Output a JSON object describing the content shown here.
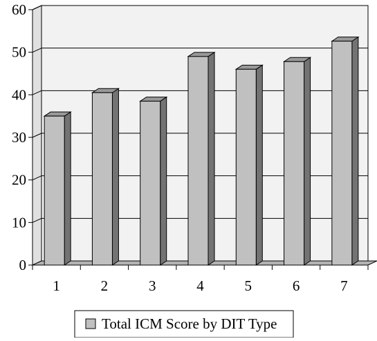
{
  "chart_data": {
    "type": "bar",
    "style": "3d-column",
    "categories": [
      "1",
      "2",
      "3",
      "4",
      "5",
      "6",
      "7"
    ],
    "series": [
      {
        "name": "Total ICM Score by DIT Type",
        "values": [
          35,
          40.5,
          38.5,
          49,
          46,
          47.8,
          52.6
        ]
      }
    ],
    "ylim": [
      0,
      60
    ],
    "yticks": [
      0,
      10,
      20,
      30,
      40,
      50,
      60
    ],
    "grid": true,
    "legend_position": "bottom",
    "colors": {
      "bar_front": "#c0c0c0",
      "bar_side": "#737373",
      "bar_top": "#999999",
      "wall": "#f2f2f2",
      "floor": "#b3b3b3",
      "outline": "#000000"
    }
  }
}
